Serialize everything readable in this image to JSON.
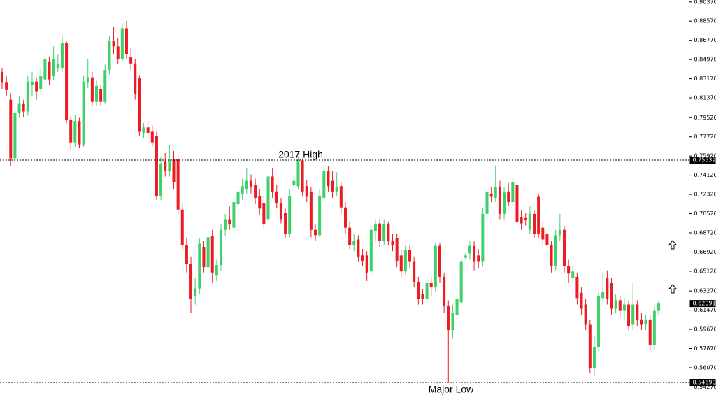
{
  "chart_data": {
    "type": "candlestick",
    "up_color": "#3fcf6b",
    "down_color": "#ec1c24",
    "ylim": [
      0.52855,
      0.90552
    ],
    "yticks": [
      {
        "value": 0.9037,
        "label": "0.90370"
      },
      {
        "value": 0.8857,
        "label": "0.88570"
      },
      {
        "value": 0.8677,
        "label": "0.86770"
      },
      {
        "value": 0.8497,
        "label": "0.84970"
      },
      {
        "value": 0.8317,
        "label": "0.83170"
      },
      {
        "value": 0.8137,
        "label": "0.81370"
      },
      {
        "value": 0.7952,
        "label": "0.79520"
      },
      {
        "value": 0.7772,
        "label": "0.77720"
      },
      {
        "value": 0.7592,
        "label": "0.75920"
      },
      {
        "value": 0.7412,
        "label": "0.74120"
      },
      {
        "value": 0.7232,
        "label": "0.72320"
      },
      {
        "value": 0.7052,
        "label": "0.70520"
      },
      {
        "value": 0.6872,
        "label": "0.68720"
      },
      {
        "value": 0.6692,
        "label": "0.66920"
      },
      {
        "value": 0.6512,
        "label": "0.65120"
      },
      {
        "value": 0.6327,
        "label": "0.63270"
      },
      {
        "value": 0.6147,
        "label": "0.61470"
      },
      {
        "value": 0.5967,
        "label": "0.59670"
      },
      {
        "value": 0.5787,
        "label": "0.57870"
      },
      {
        "value": 0.5607,
        "label": "0.56070"
      },
      {
        "value": 0.5427,
        "label": "0.54270"
      }
    ],
    "levels": [
      {
        "value": 0.75539,
        "label": "0.75539",
        "annotation": "2017 High"
      },
      {
        "value": 0.5469,
        "label": "0.54690",
        "annotation": "Major Low"
      }
    ],
    "open": [
      0.838,
      0.828,
      0.812,
      0.757,
      0.8,
      0.808,
      0.801,
      0.826,
      0.829,
      0.822,
      0.831,
      0.848,
      0.834,
      0.842,
      0.842,
      0.865,
      0.793,
      0.772,
      0.792,
      0.77,
      0.828,
      0.833,
      0.81,
      0.822,
      0.81,
      0.84,
      0.867,
      0.862,
      0.85,
      0.879,
      0.852,
      0.846,
      0.832,
      0.781,
      0.786,
      0.782,
      0.778,
      0.722,
      0.754,
      0.745,
      0.756,
      0.756,
      0.709,
      0.676,
      0.658,
      0.628,
      0.635,
      0.674,
      0.655,
      0.684,
      0.647,
      0.657,
      0.69,
      0.7,
      0.692,
      0.714,
      0.724,
      0.728,
      0.736,
      0.732,
      0.722,
      0.715,
      0.7,
      0.74,
      0.726,
      0.715,
      0.706,
      0.686,
      0.732,
      0.731,
      0.755,
      0.731,
      0.726,
      0.69,
      0.685,
      0.72,
      0.745,
      0.736,
      0.726,
      0.731,
      0.711,
      0.692,
      0.676,
      0.681,
      0.666,
      0.666,
      0.651,
      0.689,
      0.696,
      0.68,
      0.695,
      0.68,
      0.682,
      0.666,
      0.651,
      0.671,
      0.66,
      0.641,
      0.63,
      0.625,
      0.64,
      0.636,
      0.675,
      0.646,
      0.619,
      0.596,
      0.61,
      0.622,
      0.664,
      0.668,
      0.675,
      0.666,
      0.66,
      0.705,
      0.724,
      0.72,
      0.73,
      0.705,
      0.726,
      0.716,
      0.732,
      0.702,
      0.701,
      0.69,
      0.705,
      0.721,
      0.692,
      0.686,
      0.676,
      0.656,
      0.685,
      0.69,
      0.656,
      0.645,
      0.646,
      0.631,
      0.62,
      0.601,
      0.56,
      0.58,
      0.626,
      0.645,
      0.64,
      0.616,
      0.624,
      0.614,
      0.62,
      0.601,
      0.62,
      0.606,
      0.602,
      0.606,
      0.582,
      0.614
    ],
    "high": [
      0.842,
      0.834,
      0.818,
      0.806,
      0.815,
      0.812,
      0.834,
      0.838,
      0.833,
      0.842,
      0.855,
      0.852,
      0.862,
      0.855,
      0.872,
      0.867,
      0.797,
      0.798,
      0.795,
      0.835,
      0.85,
      0.838,
      0.83,
      0.826,
      0.845,
      0.872,
      0.88,
      0.87,
      0.884,
      0.886,
      0.86,
      0.85,
      0.835,
      0.79,
      0.792,
      0.788,
      0.782,
      0.758,
      0.762,
      0.77,
      0.764,
      0.76,
      0.715,
      0.682,
      0.665,
      0.645,
      0.682,
      0.68,
      0.688,
      0.69,
      0.662,
      0.695,
      0.705,
      0.712,
      0.72,
      0.732,
      0.738,
      0.748,
      0.742,
      0.738,
      0.728,
      0.722,
      0.746,
      0.748,
      0.732,
      0.72,
      0.71,
      0.728,
      0.742,
      0.758,
      0.757,
      0.737,
      0.73,
      0.695,
      0.728,
      0.75,
      0.75,
      0.745,
      0.744,
      0.735,
      0.716,
      0.698,
      0.686,
      0.685,
      0.672,
      0.67,
      0.694,
      0.7,
      0.7,
      0.7,
      0.698,
      0.686,
      0.686,
      0.672,
      0.676,
      0.676,
      0.665,
      0.646,
      0.634,
      0.645,
      0.646,
      0.678,
      0.678,
      0.65,
      0.624,
      0.62,
      0.63,
      0.664,
      0.668,
      0.68,
      0.68,
      0.672,
      0.71,
      0.732,
      0.73,
      0.75,
      0.736,
      0.73,
      0.734,
      0.738,
      0.736,
      0.708,
      0.706,
      0.712,
      0.708,
      0.724,
      0.698,
      0.69,
      0.68,
      0.69,
      0.705,
      0.694,
      0.662,
      0.656,
      0.65,
      0.636,
      0.625,
      0.606,
      0.59,
      0.632,
      0.65,
      0.652,
      0.645,
      0.63,
      0.628,
      0.626,
      0.624,
      0.64,
      0.624,
      0.612,
      0.61,
      0.61,
      0.62,
      0.624
    ],
    "low": [
      0.822,
      0.815,
      0.75,
      0.75,
      0.795,
      0.796,
      0.797,
      0.815,
      0.812,
      0.818,
      0.826,
      0.826,
      0.83,
      0.838,
      0.838,
      0.79,
      0.765,
      0.768,
      0.767,
      0.768,
      0.823,
      0.806,
      0.806,
      0.806,
      0.808,
      0.836,
      0.855,
      0.846,
      0.848,
      0.85,
      0.84,
      0.812,
      0.778,
      0.776,
      0.776,
      0.768,
      0.718,
      0.718,
      0.74,
      0.74,
      0.728,
      0.705,
      0.672,
      0.65,
      0.612,
      0.62,
      0.63,
      0.65,
      0.65,
      0.64,
      0.642,
      0.652,
      0.684,
      0.69,
      0.688,
      0.708,
      0.718,
      0.724,
      0.724,
      0.714,
      0.704,
      0.69,
      0.697,
      0.72,
      0.71,
      0.696,
      0.682,
      0.683,
      0.728,
      0.728,
      0.722,
      0.716,
      0.683,
      0.68,
      0.683,
      0.716,
      0.726,
      0.72,
      0.722,
      0.705,
      0.686,
      0.672,
      0.67,
      0.66,
      0.656,
      0.642,
      0.648,
      0.68,
      0.674,
      0.676,
      0.676,
      0.67,
      0.655,
      0.646,
      0.648,
      0.654,
      0.636,
      0.62,
      0.62,
      0.62,
      0.628,
      0.632,
      0.64,
      0.612,
      0.5469,
      0.588,
      0.604,
      0.618,
      0.662,
      0.662,
      0.652,
      0.654,
      0.656,
      0.7,
      0.716,
      0.716,
      0.7,
      0.7,
      0.712,
      0.712,
      0.694,
      0.69,
      0.694,
      0.686,
      0.682,
      0.682,
      0.676,
      0.67,
      0.65,
      0.652,
      0.68,
      0.65,
      0.64,
      0.64,
      0.62,
      0.61,
      0.596,
      0.556,
      0.553,
      0.576,
      0.62,
      0.62,
      0.61,
      0.612,
      0.608,
      0.606,
      0.596,
      0.596,
      0.6,
      0.596,
      0.596,
      0.578,
      0.578,
      0.61
    ],
    "close": [
      0.828,
      0.821,
      0.757,
      0.8,
      0.808,
      0.801,
      0.829,
      0.829,
      0.82,
      0.834,
      0.85,
      0.831,
      0.85,
      0.846,
      0.865,
      0.793,
      0.772,
      0.792,
      0.77,
      0.829,
      0.833,
      0.81,
      0.825,
      0.81,
      0.84,
      0.867,
      0.862,
      0.85,
      0.879,
      0.855,
      0.846,
      0.817,
      0.782,
      0.786,
      0.781,
      0.772,
      0.722,
      0.752,
      0.745,
      0.756,
      0.735,
      0.709,
      0.676,
      0.658,
      0.625,
      0.635,
      0.677,
      0.655,
      0.683,
      0.65,
      0.657,
      0.69,
      0.7,
      0.695,
      0.716,
      0.726,
      0.731,
      0.736,
      0.73,
      0.72,
      0.71,
      0.695,
      0.74,
      0.726,
      0.715,
      0.7,
      0.686,
      0.722,
      0.736,
      0.755,
      0.726,
      0.721,
      0.69,
      0.685,
      0.722,
      0.745,
      0.731,
      0.726,
      0.73,
      0.711,
      0.692,
      0.676,
      0.68,
      0.665,
      0.661,
      0.65,
      0.69,
      0.695,
      0.68,
      0.695,
      0.68,
      0.676,
      0.661,
      0.651,
      0.671,
      0.66,
      0.641,
      0.625,
      0.625,
      0.64,
      0.636,
      0.675,
      0.646,
      0.619,
      0.596,
      0.612,
      0.625,
      0.66,
      0.666,
      0.675,
      0.66,
      0.66,
      0.705,
      0.726,
      0.721,
      0.73,
      0.705,
      0.725,
      0.716,
      0.735,
      0.697,
      0.696,
      0.699,
      0.705,
      0.686,
      0.686,
      0.681,
      0.676,
      0.656,
      0.685,
      0.69,
      0.656,
      0.649,
      0.651,
      0.626,
      0.616,
      0.601,
      0.56,
      0.58,
      0.628,
      0.632,
      0.625,
      0.616,
      0.624,
      0.614,
      0.62,
      0.6,
      0.62,
      0.606,
      0.601,
      0.606,
      0.582,
      0.614,
      0.62091
    ]
  }
}
